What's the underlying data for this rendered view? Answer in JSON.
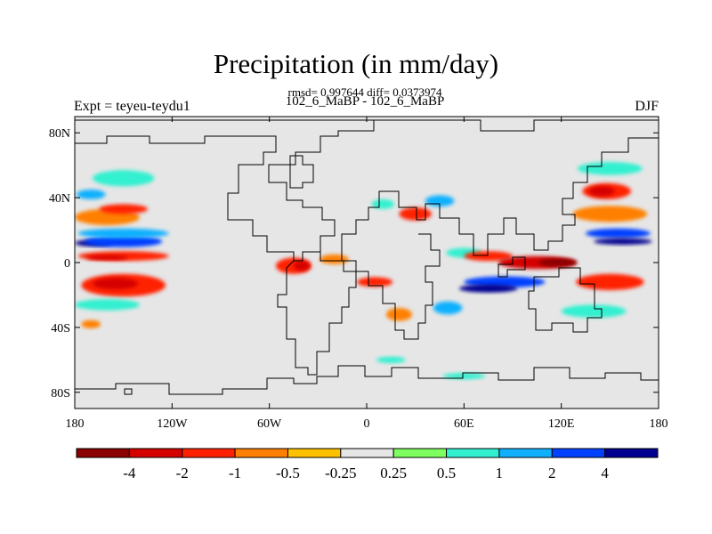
{
  "figure": {
    "title": "Precipitation (in mm/day)",
    "stats": "rmsd= 0.997644 diff= 0.0373974",
    "subtitle": "102_6_MaBP - 102_6_MaBP",
    "left_label": "Expt = teyeu-teydu1",
    "right_label": "DJF"
  },
  "map": {
    "projection": "cylindrical-equidistant",
    "lon_range": [
      -180,
      180
    ],
    "lat_range": [
      -90,
      90
    ],
    "lat_ticks": [
      {
        "value": 80,
        "label": "80N"
      },
      {
        "value": 40,
        "label": "40N"
      },
      {
        "value": 0,
        "label": "0"
      },
      {
        "value": -40,
        "label": "40S"
      },
      {
        "value": -80,
        "label": "80S"
      }
    ],
    "lon_ticks": [
      {
        "value": -180,
        "label": "180"
      },
      {
        "value": -120,
        "label": "120W"
      },
      {
        "value": -60,
        "label": "60W"
      },
      {
        "value": 0,
        "label": "0"
      },
      {
        "value": 60,
        "label": "60E"
      },
      {
        "value": 120,
        "label": "120E"
      },
      {
        "value": 180,
        "label": "180"
      }
    ],
    "background_color": "#e6e6e6",
    "coastline_color": "#000000"
  },
  "colorbar": {
    "labels": [
      "-4",
      "-2",
      "-1",
      "-0.5",
      "-0.25",
      "0.25",
      "0.5",
      "1",
      "2",
      "4"
    ],
    "colors": [
      "#8b0000",
      "#d40000",
      "#ff2000",
      "#ff8000",
      "#ffc000",
      "#e6e6e6",
      "#80ff60",
      "#30f0d0",
      "#10b0ff",
      "#0040ff",
      "#000090"
    ]
  },
  "fields": [
    {
      "lon": -168,
      "lat": 12,
      "w": 24,
      "h": 4,
      "level": "4"
    },
    {
      "lon": -150,
      "lat": 13,
      "w": 48,
      "h": 7,
      "level": "2"
    },
    {
      "lon": -150,
      "lat": 18,
      "w": 56,
      "h": 6,
      "level": "1"
    },
    {
      "lon": -150,
      "lat": 4,
      "w": 56,
      "h": 6,
      "level": "-1"
    },
    {
      "lon": -160,
      "lat": 3,
      "w": 26,
      "h": 3,
      "level": "-2"
    },
    {
      "lon": -150,
      "lat": -14,
      "w": 52,
      "h": 14,
      "level": "-1"
    },
    {
      "lon": -155,
      "lat": -13,
      "w": 28,
      "h": 7,
      "level": "-2"
    },
    {
      "lon": -160,
      "lat": 28,
      "w": 40,
      "h": 10,
      "level": "-0.5"
    },
    {
      "lon": -150,
      "lat": 33,
      "w": 30,
      "h": 6,
      "level": "-1"
    },
    {
      "lon": -170,
      "lat": 42,
      "w": 18,
      "h": 6,
      "level": "1"
    },
    {
      "lon": -150,
      "lat": 52,
      "w": 38,
      "h": 10,
      "level": "0.5"
    },
    {
      "lon": -160,
      "lat": -26,
      "w": 40,
      "h": 7,
      "level": "0.5"
    },
    {
      "lon": -170,
      "lat": -38,
      "w": 12,
      "h": 5,
      "level": "-0.5"
    },
    {
      "lon": -45,
      "lat": -2,
      "w": 22,
      "h": 10,
      "level": "-1"
    },
    {
      "lon": -40,
      "lat": -2,
      "w": 10,
      "h": 6,
      "level": "-2"
    },
    {
      "lon": -20,
      "lat": 2,
      "w": 18,
      "h": 6,
      "level": "-0.5"
    },
    {
      "lon": 5,
      "lat": -12,
      "w": 22,
      "h": 6,
      "level": "-1"
    },
    {
      "lon": 30,
      "lat": 30,
      "w": 20,
      "h": 8,
      "level": "-1"
    },
    {
      "lon": 10,
      "lat": 36,
      "w": 14,
      "h": 6,
      "level": "0.5"
    },
    {
      "lon": 45,
      "lat": 38,
      "w": 18,
      "h": 7,
      "level": "1"
    },
    {
      "lon": 60,
      "lat": 6,
      "w": 22,
      "h": 6,
      "level": "0.5"
    },
    {
      "lon": 75,
      "lat": 4,
      "w": 30,
      "h": 6,
      "level": "-1"
    },
    {
      "lon": 105,
      "lat": 0,
      "w": 48,
      "h": 8,
      "level": "-2"
    },
    {
      "lon": 118,
      "lat": 0,
      "w": 24,
      "h": 5,
      "level": "-4"
    },
    {
      "lon": 85,
      "lat": -12,
      "w": 50,
      "h": 7,
      "level": "2"
    },
    {
      "lon": 75,
      "lat": -16,
      "w": 36,
      "h": 5,
      "level": "4"
    },
    {
      "lon": 155,
      "lat": 18,
      "w": 40,
      "h": 6,
      "level": "2"
    },
    {
      "lon": 158,
      "lat": 13,
      "w": 36,
      "h": 4,
      "level": "4"
    },
    {
      "lon": 150,
      "lat": 30,
      "w": 46,
      "h": 10,
      "level": "-0.5"
    },
    {
      "lon": 148,
      "lat": 44,
      "w": 30,
      "h": 10,
      "level": "-1"
    },
    {
      "lon": 145,
      "lat": 44,
      "w": 16,
      "h": 6,
      "level": "-2"
    },
    {
      "lon": 150,
      "lat": 58,
      "w": 40,
      "h": 8,
      "level": "0.5"
    },
    {
      "lon": 150,
      "lat": -12,
      "w": 42,
      "h": 10,
      "level": "-1"
    },
    {
      "lon": 140,
      "lat": -30,
      "w": 40,
      "h": 8,
      "level": "0.5"
    },
    {
      "lon": 20,
      "lat": -32,
      "w": 16,
      "h": 8,
      "level": "-0.5"
    },
    {
      "lon": 50,
      "lat": -28,
      "w": 18,
      "h": 8,
      "level": "1"
    },
    {
      "lon": 15,
      "lat": -60,
      "w": 18,
      "h": 4,
      "level": "0.5"
    },
    {
      "lon": 60,
      "lat": -70,
      "w": 26,
      "h": 4,
      "level": "0.5"
    }
  ]
}
